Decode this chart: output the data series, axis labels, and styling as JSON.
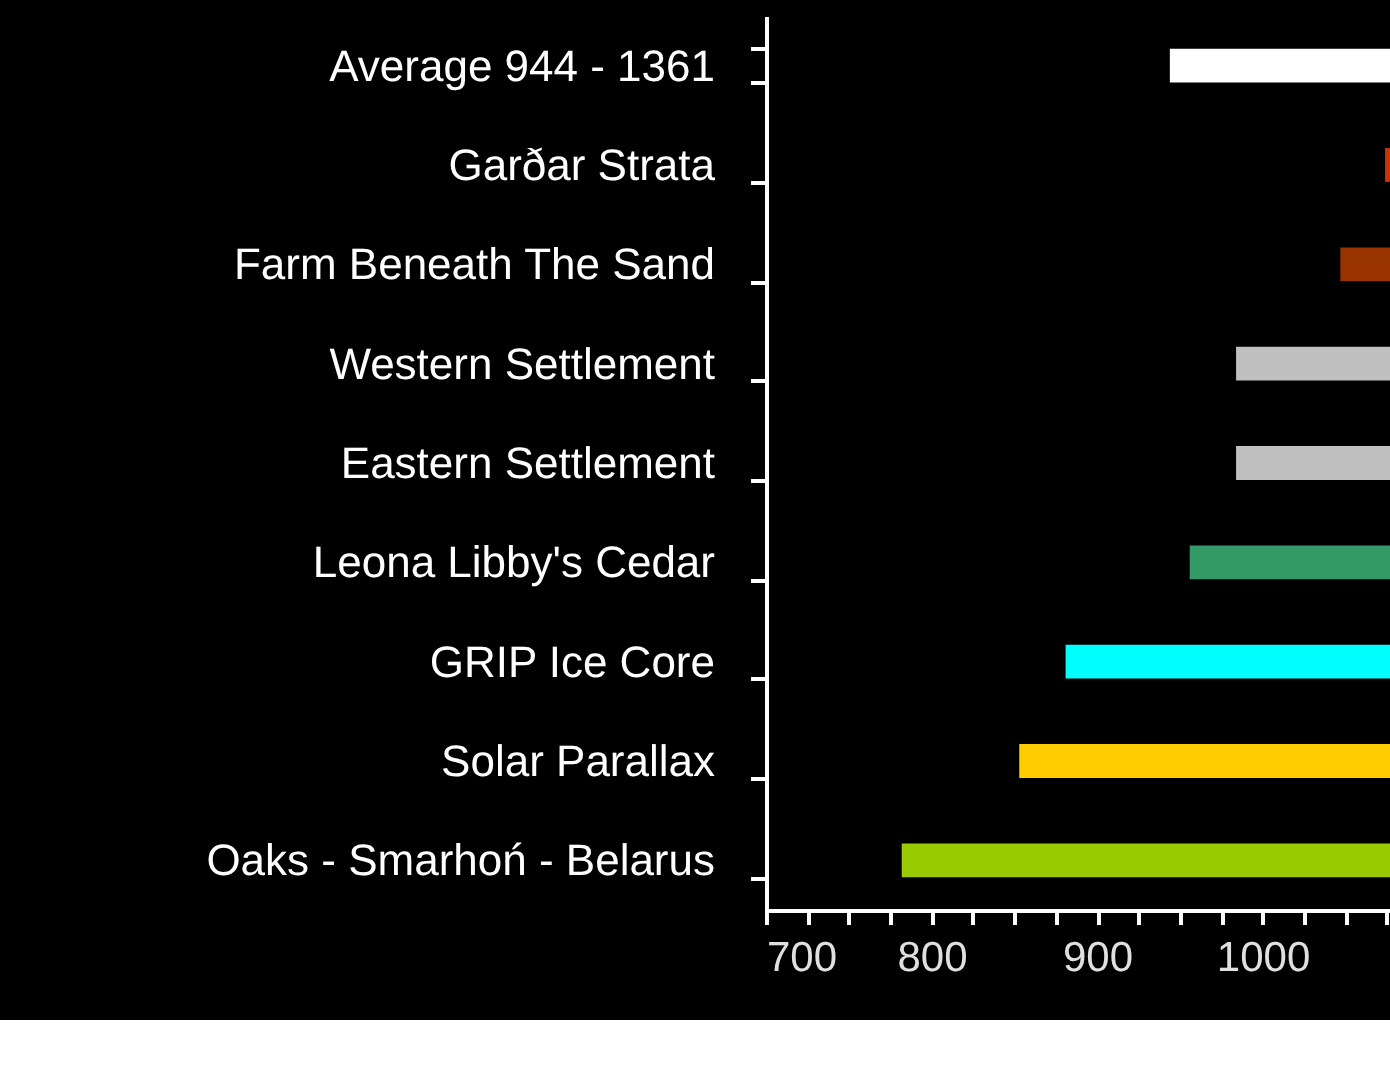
{
  "chart_data": {
    "type": "bar",
    "orientation": "horizontal",
    "categories": [
      "Average 944 - 1361",
      "Garðar Strata",
      "Farm Beneath The Sand",
      "Western Settlement",
      "Eastern Settlement",
      "Leona Libby's Cedar",
      "GRIP Ice Core",
      "Solar Parallax",
      "Oaks - Smarhoń - Belarus"
    ],
    "base": [
      944,
      1074,
      1047,
      984,
      984,
      956,
      881,
      853,
      782
    ],
    "values": [
      133,
      3,
      30,
      93,
      93,
      121,
      196,
      224,
      295
    ],
    "colors": [
      "#ffffff",
      "#cc3300",
      "#993300",
      "#c0c0c0",
      "#c0c0c0",
      "#339966",
      "#00ffff",
      "#ffcc00",
      "#99cc00"
    ],
    "xlim": [
      700,
      1077
    ],
    "xticks": [
      700,
      {
        "value": 725,
        "label": null
      },
      {
        "value": 750,
        "label": null
      },
      {
        "value": 775,
        "label": null
      },
      800,
      {
        "value": 825,
        "label": null
      },
      {
        "value": 850,
        "label": null
      },
      {
        "value": 875,
        "label": null
      },
      900,
      {
        "value": 925,
        "label": null
      },
      {
        "value": 950,
        "label": null
      },
      {
        "value": 975,
        "label": null
      },
      1000,
      {
        "value": 1025,
        "label": null
      },
      {
        "value": 1050,
        "label": null
      },
      {
        "value": 1075,
        "label": null
      }
    ],
    "grid": false
  }
}
